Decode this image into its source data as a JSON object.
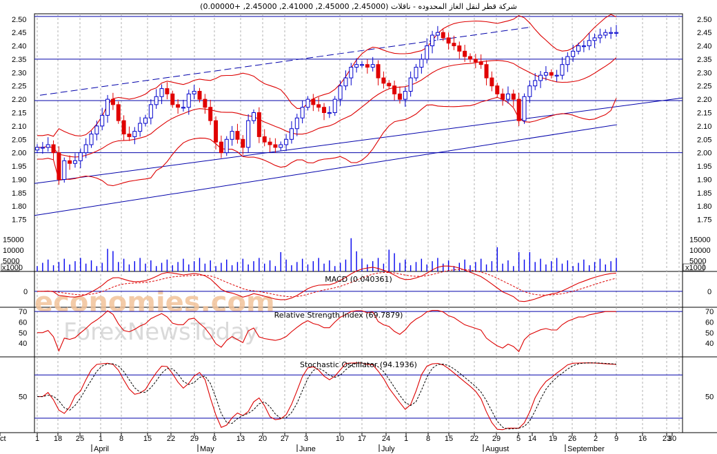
{
  "window": {
    "title": "شركة قطر لنقل الغاز المحدوده - ناقلات (2.45000, 2.45000, 2.41000, 2.45000, +0.00000)"
  },
  "watermark": {
    "line1": "economies.com",
    "line2": "ForexNewsToday"
  },
  "colors": {
    "background": "#ffffff",
    "up_candle": "#0000cc",
    "down_candle": "#e00000",
    "bollinger": "#dd0000",
    "trend": "#0000aa",
    "volume": "#0000ee",
    "grid": "#b0b0b0",
    "watermark_orange": "#f2c29a",
    "watermark_gray": "#d6d6d6"
  },
  "chart_data": [
    {
      "type": "candlestick",
      "title": "شركة قطر لنقل الغاز المحدوده - ناقلات (2.45000, 2.45000, 2.41000, 2.45000, +0.00000)",
      "ylim": [
        1.7,
        2.52
      ],
      "y_ticks": [
        "2.50",
        "2.45",
        "2.40",
        "2.35",
        "2.30",
        "2.25",
        "2.20",
        "2.15",
        "2.10",
        "2.05",
        "2.00",
        "1.95",
        "1.90",
        "1.85",
        "1.80",
        "1.75"
      ],
      "horizontal_lines": [
        2.51,
        2.35,
        2.195,
        2.0
      ],
      "closes": [
        2.02,
        2.02,
        2.03,
        2.0,
        1.9,
        1.97,
        1.96,
        1.97,
        2.0,
        2.03,
        2.07,
        2.1,
        2.14,
        2.2,
        2.18,
        2.12,
        2.07,
        2.06,
        2.08,
        2.11,
        2.13,
        2.18,
        2.21,
        2.24,
        2.22,
        2.18,
        2.17,
        2.17,
        2.22,
        2.23,
        2.2,
        2.17,
        2.12,
        2.04,
        2.0,
        2.05,
        2.08,
        2.05,
        2.02,
        2.12,
        2.15,
        2.06,
        2.04,
        2.03,
        2.02,
        2.03,
        2.05,
        2.09,
        2.13,
        2.17,
        2.2,
        2.18,
        2.17,
        2.15,
        2.15,
        2.2,
        2.25,
        2.28,
        2.32,
        2.33,
        2.33,
        2.32,
        2.33,
        2.28,
        2.26,
        2.25,
        2.22,
        2.2,
        2.23,
        2.28,
        2.32,
        2.35,
        2.4,
        2.44,
        2.45,
        2.43,
        2.41,
        2.4,
        2.38,
        2.36,
        2.35,
        2.34,
        2.33,
        2.28,
        2.25,
        2.22,
        2.2,
        2.22,
        2.2,
        2.12,
        2.21,
        2.25,
        2.27,
        2.29,
        2.3,
        2.29,
        2.29,
        2.33,
        2.36,
        2.38,
        2.4,
        2.4,
        2.42,
        2.43,
        2.44,
        2.45,
        2.45,
        2.45
      ],
      "volume": {
        "unit": "x1000",
        "y_ticks": [
          "15000",
          "10000",
          "5000"
        ],
        "ylim": [
          0,
          18000
        ]
      }
    },
    {
      "type": "line",
      "title": "MACD (0.040361)",
      "ylim": [
        -0.04,
        0.05
      ],
      "y_ticks": [
        "0"
      ]
    },
    {
      "type": "line",
      "title": "Relative Strength Index (69.7879)",
      "ylim": [
        27,
        74
      ],
      "y_ticks": [
        "70",
        "60",
        "50",
        "40"
      ],
      "reference_line": 70
    },
    {
      "type": "line",
      "title": "Stochastic Oscillator (94.1936)",
      "ylim": [
        0,
        105
      ],
      "y_ticks": [
        "50"
      ],
      "reference_lines": [
        80,
        20
      ]
    }
  ],
  "x_axis": {
    "day_labels": [
      "1",
      "18",
      "25",
      "1",
      "8",
      "15",
      "22",
      "29",
      "6",
      "13",
      "20",
      "27",
      "3",
      "10",
      "17",
      "24",
      "1",
      "8",
      "15",
      "22",
      "29",
      "5",
      "14",
      "19",
      "26",
      "2",
      "9",
      "16",
      "23",
      "30",
      "Oct"
    ],
    "month_labels": [
      "April",
      "May",
      "June",
      "July",
      "August",
      "September"
    ]
  }
}
